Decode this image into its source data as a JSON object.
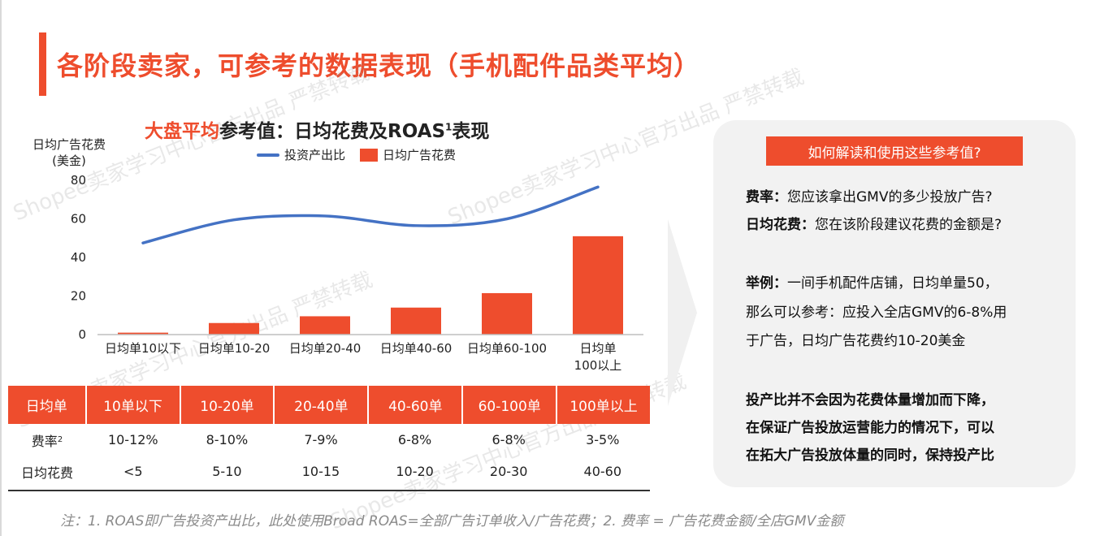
{
  "page": {
    "title": "各阶段卖家，可参考的数据表现（手机配件品类平均）",
    "watermark": "Shopee卖家学习中心官方出品 严禁转载"
  },
  "chart": {
    "title_highlight": "大盘平均",
    "title_rest": "参考值：日均花费及ROAS",
    "title_sup": "1",
    "title_tail": "表现",
    "ylabel_line1": "日均广告花费",
    "ylabel_line2": "(美金)",
    "legend_line": "投资产出比",
    "legend_bar": "日均广告花费"
  },
  "chart_data": {
    "type": "bar",
    "categories": [
      "日均单10以下",
      "日均单10-20",
      "日均单20-40",
      "日均单40-60",
      "日均单60-100",
      "日均单100以上"
    ],
    "category_labels": [
      [
        "日均单10以下"
      ],
      [
        "日均单10-20"
      ],
      [
        "日均单20-40"
      ],
      [
        "日均单40-60"
      ],
      [
        "日均单60-100"
      ],
      [
        "日均单",
        "100以上"
      ]
    ],
    "series": [
      {
        "name": "日均广告花费",
        "type": "bar",
        "values": [
          1,
          6,
          9.5,
          14,
          21.5,
          51
        ]
      },
      {
        "name": "投资产出比",
        "type": "line",
        "values": [
          47.5,
          59.5,
          61.5,
          56.5,
          60,
          76.5
        ]
      }
    ],
    "ylim": [
      0,
      80
    ],
    "yticks": [
      0,
      20,
      40,
      60,
      80
    ],
    "colors": {
      "bar": "#ee4d2d",
      "line": "#4472c4"
    },
    "legend": "top",
    "grid": false
  },
  "table": {
    "headers": [
      "日均单",
      "10单以下",
      "10-20单",
      "20-40单",
      "40-60单",
      "60-100单",
      "100单以上"
    ],
    "rows": [
      {
        "label": "费率",
        "sup": "2",
        "values": [
          "10-12%",
          "8-10%",
          "7-9%",
          "6-8%",
          "6-8%",
          "3-5%"
        ]
      },
      {
        "label": "日均花费",
        "sup": "",
        "values": [
          "<5",
          "5-10",
          "10-15",
          "10-20",
          "20-30",
          "40-60"
        ]
      }
    ]
  },
  "panel": {
    "badge": "如何解读和使用这些参考值?",
    "rate_label": "费率：",
    "rate_text": "您应该拿出GMV的多少投放广告?",
    "spend_label": "日均花费：",
    "spend_text": "您在该阶段建议花费的金额是?",
    "example_label": "举例：",
    "example_line1": "一间手机配件店铺，日均单量50，",
    "example_line2": "那么可以参考：应投入全店GMV的6-8%用",
    "example_line3": "于广告，日均广告花费约10-20美金",
    "note_line1": "投产比并不会因为花费体量增加而下降，",
    "note_line2": "在保证广告投放运营能力的情况下，可以",
    "note_line3": "在拓大广告投放体量的同时，保持投产比"
  },
  "footnote": "注：1. ROAS即广告投资产出比，此处使用Broad ROAS=全部广告订单收入/广告花费；2. 费率 = 广告花费金额/全店GMV金额"
}
